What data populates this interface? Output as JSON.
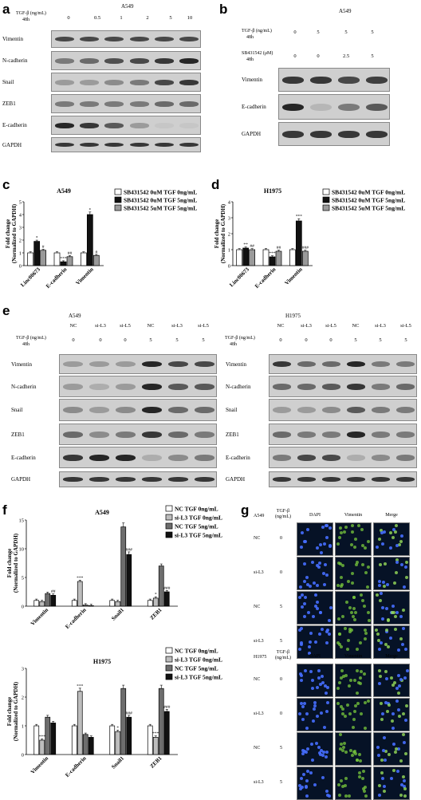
{
  "panel_labels": {
    "a": "a",
    "b": "b",
    "c": "c",
    "d": "d",
    "e": "e",
    "f": "f",
    "g": "g"
  },
  "panel_a": {
    "title": "A549",
    "treatment_label": "TGF-β (ng/mL)",
    "time": "48h",
    "doses": [
      "0",
      "0.5",
      "1",
      "2",
      "5",
      "10"
    ],
    "rows": [
      "Vimentin",
      "N-cadherin",
      "Snail",
      "ZEB1",
      "E-cadherin",
      "GAPDH"
    ]
  },
  "panel_b": {
    "title": "A549",
    "tgf_label": "TGF-β (ng/mL)",
    "time1": "48h",
    "tgf_values": [
      "0",
      "5",
      "5",
      "5"
    ],
    "sb_label": "SB431542 (μM)",
    "time2": "48h",
    "sb_values": [
      "0",
      "0",
      "2.5",
      "5"
    ],
    "rows": [
      "Vimentin",
      "E-cadherin",
      "GAPDH"
    ]
  },
  "panel_e": {
    "left_title": "A549",
    "right_title": "H1975",
    "groups": [
      "NC",
      "si-L3",
      "si-L5",
      "NC",
      "si-L3",
      "si-L5"
    ],
    "treatment_label": "TGF-β (ng/mL)",
    "time": "48h",
    "doses": [
      "0",
      "0",
      "0",
      "5",
      "5",
      "5"
    ],
    "rows": [
      "Vimentin",
      "N-cadherin",
      "Snail",
      "ZEB1",
      "E-cadherin",
      "GAPDH"
    ]
  },
  "panel_g": {
    "groups": [
      {
        "cell": "A549",
        "treatment_label": "TGF-β (ng/mL)",
        "channels": [
          "DAPI",
          "Vimentin",
          "Merge"
        ],
        "rows": [
          {
            "label": "NC",
            "dose": "0"
          },
          {
            "label": "si-L3",
            "dose": "0"
          },
          {
            "label": "NC",
            "dose": "5"
          },
          {
            "label": "si-L3",
            "dose": "5"
          }
        ]
      },
      {
        "cell": "H1975",
        "treatment_label": "TGF-β (ng/mL)",
        "channels": [
          "DAPI",
          "Vimentin",
          "Merge"
        ],
        "rows": [
          {
            "label": "NC",
            "dose": "0"
          },
          {
            "label": "si-L3",
            "dose": "0"
          },
          {
            "label": "NC",
            "dose": "5"
          },
          {
            "label": "si-L3",
            "dose": "5"
          }
        ]
      }
    ]
  },
  "chart_data": [
    {
      "panel": "c",
      "type": "bar",
      "title": "A549",
      "ylabel": "Fold change (Normalized to GAPDH)",
      "categories": [
        "Linc00673",
        "E-cadherin",
        "Vimentin"
      ],
      "ylim": [
        0,
        5
      ],
      "yticks": [
        "0",
        "1",
        "2",
        "3",
        "4",
        "5"
      ],
      "series": [
        {
          "name": "SB431542 0uM TGF 0ng/mL",
          "fill": "#ffffff",
          "values": [
            1.0,
            1.0,
            1.0
          ]
        },
        {
          "name": "SB431542 0uM TGF 5ng/mL",
          "fill": "#111111",
          "values": [
            1.9,
            0.3,
            4.0
          ]
        },
        {
          "name": "SB431542 5uM TGF 5ng/mL",
          "fill": "#9a9a9a",
          "values": [
            1.2,
            0.7,
            0.8
          ]
        }
      ],
      "annotations": [
        [
          "",
          "*",
          "#"
        ],
        [
          "",
          "***",
          "##"
        ],
        [
          "",
          "*",
          "#"
        ]
      ]
    },
    {
      "panel": "d",
      "type": "bar",
      "title": "H1975",
      "ylabel": "Fold change (Normalized to GAPDH)",
      "categories": [
        "Linc00673",
        "E-cadherin",
        "Vimentin"
      ],
      "ylim": [
        0,
        4
      ],
      "yticks": [
        "0",
        "1",
        "2",
        "3",
        "4"
      ],
      "series": [
        {
          "name": "SB431542 0uM TGF 0ng/mL",
          "fill": "#ffffff",
          "values": [
            1.0,
            1.0,
            1.0
          ]
        },
        {
          "name": "SB431542 0uM TGF 5ng/mL",
          "fill": "#111111",
          "values": [
            1.1,
            0.55,
            2.8
          ]
        },
        {
          "name": "SB431542 5uM TGF 5ng/mL",
          "fill": "#9a9a9a",
          "values": [
            1.0,
            0.9,
            0.9
          ]
        }
      ],
      "annotations": [
        [
          "",
          "**",
          "##"
        ],
        [
          "",
          "***",
          "##"
        ],
        [
          "",
          "***",
          "###"
        ]
      ]
    },
    {
      "panel": "f-top",
      "type": "bar",
      "title": "A549",
      "ylabel": "Fold change (Normalized to GAPDH)",
      "categories": [
        "Vimentin",
        "E-cadherin",
        "Snail1",
        "ZEB1"
      ],
      "ylim": [
        0,
        15
      ],
      "yticks": [
        "0",
        "5",
        "10",
        "15"
      ],
      "series": [
        {
          "name": "NC    TGF 0ng/mL",
          "fill": "#ffffff",
          "values": [
            1.0,
            1.0,
            1.0,
            1.0
          ]
        },
        {
          "name": "si-L3 TGF 0ng/mL",
          "fill": "#bdbdbd",
          "values": [
            0.8,
            4.3,
            0.8,
            1.4
          ]
        },
        {
          "name": "NC    TGF 5ng/mL",
          "fill": "#6e6e6e",
          "values": [
            2.2,
            0.2,
            13.8,
            7.0
          ]
        },
        {
          "name": "si-L3 TGF 5ng/mL",
          "fill": "#111111",
          "values": [
            1.9,
            0.1,
            9.0,
            2.5
          ]
        }
      ],
      "annotations": [
        [
          "",
          "",
          "",
          "##"
        ],
        [
          "",
          "***",
          "",
          ""
        ],
        [
          "",
          "",
          "",
          "###"
        ],
        [
          "",
          "*",
          "",
          "###"
        ]
      ]
    },
    {
      "panel": "f-bottom",
      "type": "bar",
      "title": "H1975",
      "ylabel": "Fold change (Normalized to GAPDH)",
      "categories": [
        "Vimentin",
        "E-cadherin",
        "Snail1",
        "ZEB1"
      ],
      "ylim": [
        0,
        3
      ],
      "yticks": [
        "0",
        "1",
        "2",
        "3"
      ],
      "series": [
        {
          "name": "NC    TGF 0ng/mL",
          "fill": "#ffffff",
          "values": [
            1.0,
            1.0,
            1.0,
            1.0
          ]
        },
        {
          "name": "si-L3 TGF 0ng/mL",
          "fill": "#bdbdbd",
          "values": [
            0.5,
            2.2,
            0.8,
            0.6
          ]
        },
        {
          "name": "NC    TGF 5ng/mL",
          "fill": "#6e6e6e",
          "values": [
            1.3,
            0.7,
            2.3,
            2.3
          ]
        },
        {
          "name": "si-L3 TGF 5ng/mL",
          "fill": "#111111",
          "values": [
            1.1,
            0.6,
            1.3,
            1.5
          ]
        }
      ],
      "annotations": [
        [
          "",
          "***",
          "",
          ""
        ],
        [
          "",
          "***",
          "",
          ""
        ],
        [
          "",
          "*",
          "",
          "###"
        ],
        [
          "",
          "***",
          "",
          "###"
        ]
      ]
    }
  ]
}
